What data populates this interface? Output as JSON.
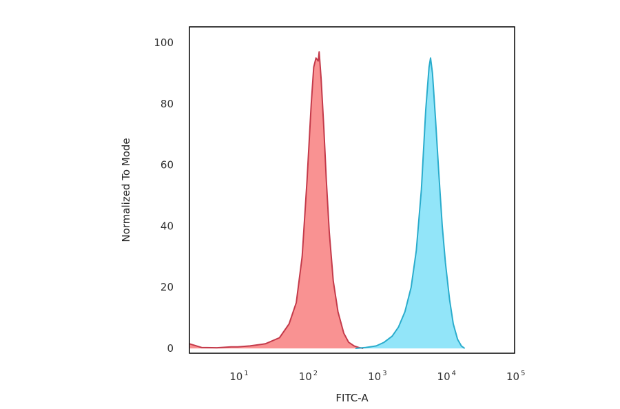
{
  "chart_data": {
    "type": "area",
    "xlabel": "FITC-A",
    "ylabel": "Normalized To Mode",
    "x_scale": "log",
    "xlim": [
      2,
      100000
    ],
    "ylim": [
      0,
      100
    ],
    "x_ticks": [
      {
        "base": "10",
        "exp": "1",
        "value": 10
      },
      {
        "base": "10",
        "exp": "2",
        "value": 100
      },
      {
        "base": "10",
        "exp": "3",
        "value": 1000
      },
      {
        "base": "10",
        "exp": "4",
        "value": 10000
      },
      {
        "base": "10",
        "exp": "5",
        "value": 100000
      }
    ],
    "y_ticks": [
      0,
      20,
      40,
      60,
      80,
      100
    ],
    "grid": false,
    "legend": "none",
    "series": [
      {
        "color": "#f87f7f",
        "edge_color": "#c43a4a",
        "x": [
          2,
          3,
          5,
          8,
          10,
          15,
          25,
          40,
          55,
          70,
          85,
          100,
          115,
          125,
          135,
          145,
          150,
          160,
          175,
          190,
          210,
          240,
          280,
          340,
          400,
          480,
          560,
          650
        ],
        "y": [
          1.5,
          0.3,
          0.2,
          0.5,
          0.5,
          0.8,
          1.5,
          3.5,
          8,
          15,
          30,
          55,
          80,
          92,
          95,
          94,
          97,
          88,
          72,
          55,
          38,
          22,
          12,
          5,
          2,
          0.8,
          0.3,
          0
        ]
      },
      {
        "color": "#7fe0f8",
        "edge_color": "#2aaccc",
        "x": [
          500,
          700,
          1000,
          1300,
          1700,
          2100,
          2600,
          3200,
          3800,
          4500,
          5200,
          5800,
          6100,
          6500,
          7200,
          8000,
          9000,
          10000,
          11500,
          13000,
          15000,
          17000,
          19000
        ],
        "y": [
          0,
          0.3,
          0.8,
          2,
          4,
          7,
          12,
          20,
          32,
          52,
          78,
          92,
          95,
          90,
          75,
          58,
          40,
          28,
          16,
          8,
          3,
          0.8,
          0
        ]
      }
    ]
  }
}
